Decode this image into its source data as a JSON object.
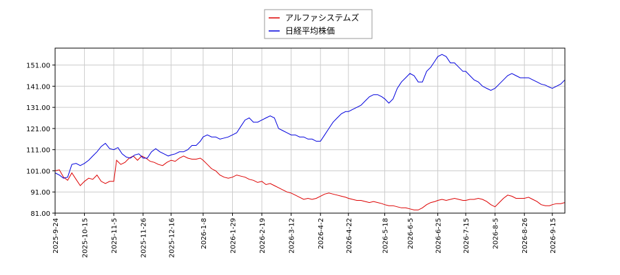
{
  "chart_data": {
    "type": "line",
    "title": "",
    "xlabel": "",
    "ylabel": "",
    "ylim": [
      81.0,
      159.0
    ],
    "y_ticks": [
      "81.00",
      "91.00",
      "101.00",
      "111.00",
      "121.00",
      "131.00",
      "141.00",
      "151.00"
    ],
    "y_tick_values": [
      81,
      91,
      101,
      111,
      121,
      131,
      141,
      151
    ],
    "x_ticks": [
      "2025-9-24",
      "2025-10-15",
      "2025-11-5",
      "2025-11-26",
      "2025-12-16",
      "2026-1-8",
      "2026-1-29",
      "2026-2-19",
      "2026-3-12",
      "2026-4-2",
      "2026-4-22",
      "2026-5-18",
      "2026-6-5",
      "2026-6-25",
      "2026-7-15",
      "2026-8-5",
      "2026-8-26",
      "2026-9-15"
    ],
    "x_tick_days": [
      0,
      21,
      42,
      63,
      83,
      106,
      127,
      148,
      169,
      190,
      210,
      236,
      254,
      274,
      294,
      315,
      336,
      356
    ],
    "x_range_days": [
      0,
      365
    ],
    "grid": true,
    "legend_position": "top-center",
    "series": [
      {
        "name": "アルファシステムズ",
        "color": "#dd0000",
        "points": [
          [
            0,
            101
          ],
          [
            3,
            101.5
          ],
          [
            6,
            98
          ],
          [
            9,
            96.5
          ],
          [
            12,
            100
          ],
          [
            15,
            97
          ],
          [
            18,
            94
          ],
          [
            21,
            96
          ],
          [
            24,
            97.5
          ],
          [
            27,
            97
          ],
          [
            30,
            99
          ],
          [
            33,
            96
          ],
          [
            36,
            95
          ],
          [
            39,
            96
          ],
          [
            42,
            96
          ],
          [
            44,
            106
          ],
          [
            47,
            104
          ],
          [
            50,
            105
          ],
          [
            53,
            107
          ],
          [
            56,
            108
          ],
          [
            59,
            106
          ],
          [
            62,
            108
          ],
          [
            65,
            107
          ],
          [
            68,
            105.5
          ],
          [
            71,
            105
          ],
          [
            74,
            104
          ],
          [
            77,
            103.5
          ],
          [
            80,
            105
          ],
          [
            83,
            106
          ],
          [
            86,
            105.5
          ],
          [
            89,
            107
          ],
          [
            92,
            108
          ],
          [
            95,
            107
          ],
          [
            98,
            106.5
          ],
          [
            101,
            106.5
          ],
          [
            104,
            107
          ],
          [
            106,
            106
          ],
          [
            109,
            104
          ],
          [
            112,
            102
          ],
          [
            115,
            101
          ],
          [
            118,
            99
          ],
          [
            121,
            98
          ],
          [
            124,
            97.5
          ],
          [
            127,
            98
          ],
          [
            130,
            99
          ],
          [
            133,
            98.5
          ],
          [
            136,
            98
          ],
          [
            139,
            97
          ],
          [
            142,
            96.5
          ],
          [
            145,
            95.5
          ],
          [
            148,
            96
          ],
          [
            151,
            94.5
          ],
          [
            154,
            95
          ],
          [
            157,
            94
          ],
          [
            160,
            93
          ],
          [
            163,
            92
          ],
          [
            166,
            91
          ],
          [
            169,
            90.5
          ],
          [
            172,
            89.5
          ],
          [
            175,
            88.5
          ],
          [
            178,
            87.5
          ],
          [
            181,
            88
          ],
          [
            184,
            87.5
          ],
          [
            187,
            88
          ],
          [
            190,
            89
          ],
          [
            193,
            90
          ],
          [
            196,
            90.5
          ],
          [
            199,
            90
          ],
          [
            202,
            89.5
          ],
          [
            205,
            89
          ],
          [
            208,
            88.5
          ],
          [
            210,
            88
          ],
          [
            213,
            87.5
          ],
          [
            216,
            87
          ],
          [
            219,
            87
          ],
          [
            222,
            86.5
          ],
          [
            225,
            86
          ],
          [
            228,
            86.5
          ],
          [
            231,
            86
          ],
          [
            234,
            85.5
          ],
          [
            236,
            85
          ],
          [
            239,
            84.5
          ],
          [
            242,
            84.5
          ],
          [
            245,
            84
          ],
          [
            248,
            83.5
          ],
          [
            251,
            83.5
          ],
          [
            254,
            83
          ],
          [
            257,
            82.5
          ],
          [
            260,
            82.5
          ],
          [
            263,
            83.5
          ],
          [
            266,
            85
          ],
          [
            269,
            86
          ],
          [
            272,
            86.5
          ],
          [
            274,
            87
          ],
          [
            277,
            87.5
          ],
          [
            280,
            87
          ],
          [
            283,
            87.5
          ],
          [
            286,
            88
          ],
          [
            289,
            87.5
          ],
          [
            292,
            87
          ],
          [
            294,
            87
          ],
          [
            297,
            87.5
          ],
          [
            300,
            87.5
          ],
          [
            303,
            88
          ],
          [
            306,
            87.5
          ],
          [
            309,
            86.5
          ],
          [
            312,
            85
          ],
          [
            315,
            84
          ],
          [
            318,
            86
          ],
          [
            321,
            88
          ],
          [
            324,
            89.5
          ],
          [
            327,
            89
          ],
          [
            330,
            88
          ],
          [
            333,
            88
          ],
          [
            336,
            88
          ],
          [
            339,
            88.5
          ],
          [
            342,
            87.5
          ],
          [
            345,
            86.5
          ],
          [
            348,
            85
          ],
          [
            351,
            84.5
          ],
          [
            354,
            84.5
          ],
          [
            356,
            85
          ],
          [
            359,
            85.5
          ],
          [
            362,
            85.5
          ],
          [
            365,
            86
          ]
        ]
      },
      {
        "name": "日経平均株価",
        "color": "#0000dd",
        "points": [
          [
            0,
            100
          ],
          [
            3,
            99
          ],
          [
            6,
            97.5
          ],
          [
            9,
            98
          ],
          [
            12,
            104
          ],
          [
            15,
            104.5
          ],
          [
            18,
            103.5
          ],
          [
            21,
            104.5
          ],
          [
            24,
            106
          ],
          [
            27,
            108
          ],
          [
            30,
            110
          ],
          [
            33,
            112.5
          ],
          [
            36,
            114
          ],
          [
            39,
            111.5
          ],
          [
            42,
            111
          ],
          [
            45,
            112
          ],
          [
            48,
            109
          ],
          [
            51,
            107.5
          ],
          [
            54,
            107
          ],
          [
            57,
            108.5
          ],
          [
            60,
            109
          ],
          [
            63,
            107
          ],
          [
            66,
            107
          ],
          [
            69,
            110
          ],
          [
            72,
            111.5
          ],
          [
            75,
            110
          ],
          [
            78,
            109
          ],
          [
            81,
            108
          ],
          [
            83,
            108.5
          ],
          [
            86,
            109
          ],
          [
            89,
            110
          ],
          [
            92,
            110
          ],
          [
            95,
            111
          ],
          [
            98,
            113
          ],
          [
            101,
            113
          ],
          [
            104,
            115
          ],
          [
            106,
            117
          ],
          [
            109,
            118
          ],
          [
            112,
            117
          ],
          [
            115,
            117
          ],
          [
            118,
            116
          ],
          [
            121,
            116.5
          ],
          [
            124,
            117
          ],
          [
            127,
            118
          ],
          [
            130,
            119
          ],
          [
            133,
            122
          ],
          [
            136,
            125
          ],
          [
            139,
            126
          ],
          [
            142,
            124
          ],
          [
            145,
            124
          ],
          [
            148,
            125
          ],
          [
            151,
            126
          ],
          [
            154,
            127
          ],
          [
            157,
            126
          ],
          [
            160,
            121
          ],
          [
            163,
            120
          ],
          [
            166,
            119
          ],
          [
            169,
            118
          ],
          [
            172,
            118
          ],
          [
            175,
            117
          ],
          [
            178,
            117
          ],
          [
            181,
            116
          ],
          [
            184,
            116
          ],
          [
            187,
            115
          ],
          [
            190,
            115
          ],
          [
            193,
            118
          ],
          [
            196,
            121
          ],
          [
            199,
            124
          ],
          [
            202,
            126
          ],
          [
            205,
            128
          ],
          [
            208,
            129
          ],
          [
            210,
            129
          ],
          [
            213,
            130
          ],
          [
            216,
            131
          ],
          [
            219,
            132
          ],
          [
            222,
            134
          ],
          [
            225,
            136
          ],
          [
            228,
            137
          ],
          [
            231,
            137
          ],
          [
            234,
            136
          ],
          [
            236,
            135
          ],
          [
            239,
            133
          ],
          [
            242,
            135
          ],
          [
            245,
            140
          ],
          [
            248,
            143
          ],
          [
            251,
            145
          ],
          [
            254,
            147
          ],
          [
            257,
            146
          ],
          [
            260,
            143
          ],
          [
            263,
            143
          ],
          [
            266,
            148
          ],
          [
            269,
            150
          ],
          [
            272,
            153
          ],
          [
            274,
            155
          ],
          [
            277,
            156
          ],
          [
            280,
            155
          ],
          [
            283,
            152
          ],
          [
            286,
            152
          ],
          [
            289,
            150
          ],
          [
            292,
            148
          ],
          [
            294,
            148
          ],
          [
            297,
            146
          ],
          [
            300,
            144
          ],
          [
            303,
            143
          ],
          [
            306,
            141
          ],
          [
            309,
            140
          ],
          [
            312,
            139
          ],
          [
            315,
            140
          ],
          [
            318,
            142
          ],
          [
            321,
            144
          ],
          [
            324,
            146
          ],
          [
            327,
            147
          ],
          [
            330,
            146
          ],
          [
            333,
            145
          ],
          [
            336,
            145
          ],
          [
            339,
            145
          ],
          [
            342,
            144
          ],
          [
            345,
            143
          ],
          [
            348,
            142
          ],
          [
            351,
            141.5
          ],
          [
            354,
            140.5
          ],
          [
            356,
            140
          ],
          [
            359,
            141
          ],
          [
            362,
            142
          ],
          [
            365,
            144
          ]
        ]
      }
    ]
  }
}
